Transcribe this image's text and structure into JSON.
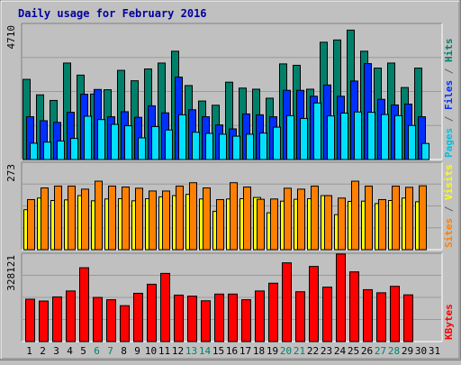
{
  "chart_data": [
    {
      "type": "bar",
      "title": "Daily usage for February 2016",
      "ylabel_max": "4710",
      "ylabel_parts": [
        {
          "text": "Pages",
          "color": "#00c0e0"
        },
        {
          "text": " / ",
          "color": "#606060"
        },
        {
          "text": "Files",
          "color": "#0030ff"
        },
        {
          "text": " / ",
          "color": "#606060"
        },
        {
          "text": "Hits",
          "color": "#00806a"
        }
      ],
      "ylim": [
        0,
        4710
      ],
      "categories": [
        "1",
        "2",
        "3",
        "4",
        "5",
        "6",
        "7",
        "8",
        "9",
        "10",
        "11",
        "12",
        "13",
        "14",
        "15",
        "16",
        "17",
        "18",
        "19",
        "20",
        "21",
        "22",
        "23",
        "24",
        "25",
        "26",
        "27",
        "28",
        "29",
        "30",
        "31"
      ],
      "series": [
        {
          "name": "Hits",
          "color": "#00806a",
          "values": [
            2850,
            2300,
            2100,
            3430,
            3000,
            2330,
            2480,
            3170,
            2800,
            3220,
            3430,
            3850,
            2630,
            2080,
            1930,
            2750,
            2540,
            2500,
            2180,
            3400,
            3350,
            2500,
            4170,
            4250,
            4600,
            3850,
            3250,
            3430,
            2560,
            3250,
            null
          ]
        },
        {
          "name": "Files",
          "color": "#0030ff",
          "values": [
            1520,
            1380,
            1320,
            1680,
            2320,
            2490,
            1520,
            1700,
            1500,
            1910,
            1660,
            2930,
            1770,
            1520,
            1230,
            1090,
            1620,
            1590,
            1520,
            2460,
            2460,
            2250,
            2650,
            2250,
            2790,
            3410,
            2140,
            1940,
            1970,
            1520,
            null
          ]
        },
        {
          "name": "Pages",
          "color": "#00e0ff",
          "values": [
            580,
            620,
            660,
            750,
            1540,
            1420,
            1250,
            1200,
            770,
            1170,
            1050,
            1590,
            970,
            930,
            900,
            830,
            900,
            940,
            1150,
            1560,
            1460,
            2010,
            1550,
            1650,
            1690,
            1680,
            1600,
            1560,
            1210,
            570,
            null
          ]
        }
      ]
    },
    {
      "type": "bar",
      "ylabel_max": "273",
      "ylabel_parts": [
        {
          "text": "Sites",
          "color": "#ff8000"
        },
        {
          "text": " / ",
          "color": "#606060"
        },
        {
          "text": "Visits",
          "color": "#ffff00"
        }
      ],
      "ylim": [
        0,
        273
      ],
      "categories": [
        "1",
        "2",
        "3",
        "4",
        "5",
        "6",
        "7",
        "8",
        "9",
        "10",
        "11",
        "12",
        "13",
        "14",
        "15",
        "16",
        "17",
        "18",
        "19",
        "20",
        "21",
        "22",
        "23",
        "24",
        "25",
        "26",
        "27",
        "28",
        "29",
        "30",
        "31"
      ],
      "series": [
        {
          "name": "Visits",
          "color": "#ffff00",
          "values": [
            130,
            168,
            160,
            162,
            176,
            159,
            165,
            166,
            159,
            166,
            172,
            176,
            180,
            165,
            125,
            165,
            166,
            170,
            120,
            158,
            164,
            166,
            176,
            114,
            157,
            158,
            150,
            160,
            168,
            156,
            null
          ]
        },
        {
          "name": "Sites",
          "color": "#ff8000",
          "values": [
            163,
            201,
            207,
            207,
            197,
            223,
            207,
            204,
            200,
            191,
            191,
            207,
            218,
            201,
            163,
            218,
            204,
            164,
            165,
            200,
            197,
            207,
            176,
            168,
            223,
            207,
            163,
            207,
            203,
            208,
            null
          ]
        }
      ]
    },
    {
      "type": "bar",
      "ylabel_max": "328121",
      "ylabel_parts": [
        {
          "text": "KBytes",
          "color": "#ff0000"
        }
      ],
      "ylim": [
        0,
        328121
      ],
      "categories": [
        "1",
        "2",
        "3",
        "4",
        "5",
        "6",
        "7",
        "8",
        "9",
        "10",
        "11",
        "12",
        "13",
        "14",
        "15",
        "16",
        "17",
        "18",
        "19",
        "20",
        "21",
        "22",
        "23",
        "24",
        "25",
        "26",
        "27",
        "28",
        "29",
        "30",
        "31"
      ],
      "series": [
        {
          "name": "KBytes",
          "color": "#ff0000",
          "values": [
            164000,
            157000,
            173000,
            196000,
            286000,
            171000,
            162000,
            139000,
            187000,
            222000,
            264000,
            180000,
            176000,
            158000,
            184000,
            184000,
            162000,
            196000,
            226000,
            305000,
            193000,
            291000,
            211000,
            339000,
            270000,
            201000,
            189000,
            214000,
            181000,
            null,
            null
          ]
        }
      ]
    }
  ],
  "xaxis": {
    "labels": [
      "1",
      "2",
      "3",
      "4",
      "5",
      "6",
      "7",
      "8",
      "9",
      "10",
      "11",
      "12",
      "13",
      "14",
      "15",
      "16",
      "17",
      "18",
      "19",
      "20",
      "21",
      "22",
      "23",
      "24",
      "25",
      "26",
      "27",
      "28",
      "29",
      "30",
      "31"
    ],
    "label_colors": [
      "#000000",
      "#000000",
      "#000000",
      "#000000",
      "#000000",
      "#00806a",
      "#00806a",
      "#000000",
      "#000000",
      "#000000",
      "#000000",
      "#000000",
      "#00806a",
      "#00806a",
      "#000000",
      "#000000",
      "#000000",
      "#000000",
      "#000000",
      "#00806a",
      "#00806a",
      "#000000",
      "#000000",
      "#000000",
      "#000000",
      "#000000",
      "#00806a",
      "#00806a",
      "#000000",
      "#000000",
      "#000000"
    ]
  }
}
